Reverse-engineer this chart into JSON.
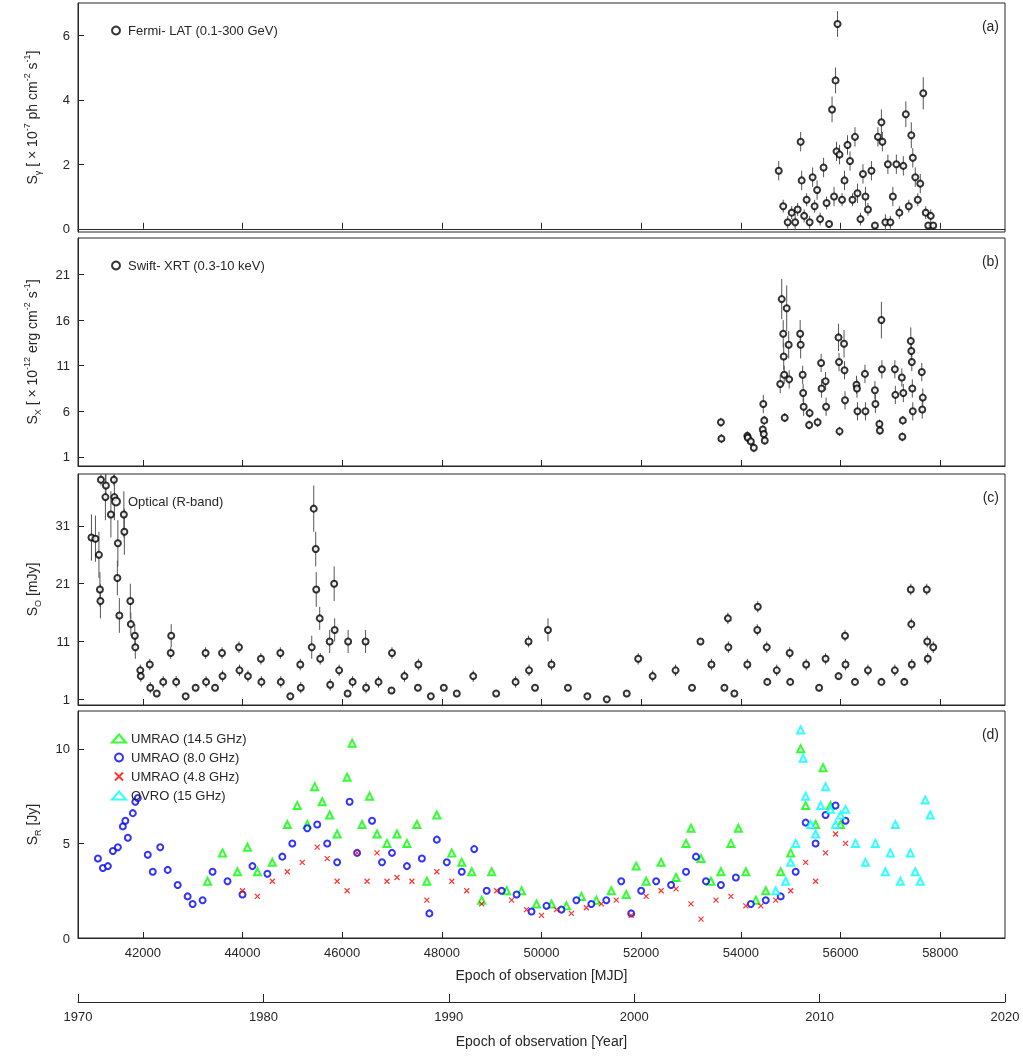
{
  "chart_data": [
    {
      "type": "scatter",
      "ylabel": "S$_{γ}$ [ × 10$^{-7}$ ph cm$^{-2}$ s$^{-1}$]",
      "xlim": [
        40700,
        59300
      ],
      "xticks": [
        42000,
        44000,
        46000,
        48000,
        50000,
        52000,
        54000,
        56000,
        58000
      ],
      "ylim": [
        -0.1,
        7
      ],
      "yticks": [
        0,
        2,
        4,
        6
      ],
      "tick_labels": "y",
      "marker": "circle",
      "legend": "top left",
      "annotations": [
        "(a)"
      ],
      "series": [
        {
          "name": "Fermi- LAT (0.1-300 GeV)",
          "color": "#000000",
          "x": [
            54760,
            54850,
            54940,
            55020,
            55090,
            55140,
            55200,
            55220,
            55270,
            55320,
            55380,
            55440,
            55480,
            55530,
            55590,
            55660,
            55720,
            55770,
            55830,
            55870,
            55900,
            55920,
            55940,
            55980,
            56030,
            56080,
            56140,
            56190,
            56240,
            56290,
            56340,
            56400,
            56450,
            56500,
            56550,
            56620,
            56690,
            56750,
            56820,
            56840,
            56900,
            56950,
            57000,
            57050,
            57120,
            57180,
            57260,
            57310,
            57370,
            57420,
            57450,
            57500,
            57550,
            57600,
            57660,
            57710,
            57760,
            57810,
            57860
          ],
          "values": [
            1.8,
            0.7,
            0.2,
            0.5,
            0.2,
            0.6,
            2.7,
            1.5,
            0.4,
            0.9,
            0.2,
            1.6,
            0.7,
            1.2,
            0.3,
            1.9,
            0.8,
            0.15,
            3.7,
            1.0,
            4.6,
            2.4,
            6.35,
            2.3,
            0.9,
            1.5,
            2.6,
            2.1,
            0.9,
            2.85,
            1.1,
            0.3,
            1.7,
            1.0,
            0.6,
            1.8,
            0.1,
            2.85,
            3.3,
            2.7,
            0.2,
            2.0,
            0.2,
            1.0,
            2.0,
            0.5,
            1.95,
            3.55,
            0.7,
            2.9,
            2.2,
            1.6,
            0.9,
            1.4,
            4.2,
            0.5,
            0.1,
            0.4,
            0.1
          ],
          "errors": [
            0.3,
            0.2,
            0.2,
            0.2,
            0.25,
            0.2,
            0.3,
            0.3,
            0.2,
            0.2,
            0.2,
            0.3,
            0.2,
            0.3,
            0.2,
            0.3,
            0.2,
            0.1,
            0.4,
            0.3,
            0.4,
            0.3,
            0.4,
            0.3,
            0.2,
            0.3,
            0.3,
            0.3,
            0.2,
            0.3,
            0.3,
            0.2,
            0.3,
            0.3,
            0.2,
            0.3,
            0.1,
            0.3,
            0.4,
            0.3,
            0.25,
            0.3,
            0.2,
            0.3,
            0.3,
            0.2,
            0.3,
            0.4,
            0.2,
            0.4,
            0.3,
            0.3,
            0.2,
            0.3,
            0.5,
            0.2,
            0.1,
            0.2,
            0.1
          ]
        }
      ]
    },
    {
      "type": "scatter",
      "ylabel": "S$_{X}$ [ × 10$^{-12}$ erg cm$^{-2}$ s$^{-1}$]",
      "xlim": [
        40700,
        59300
      ],
      "xticks": [
        42000,
        44000,
        46000,
        48000,
        50000,
        52000,
        54000,
        56000,
        58000
      ],
      "ylim": [
        0,
        25
      ],
      "yticks": [
        1,
        6,
        11,
        16,
        21
      ],
      "tick_labels": "y",
      "marker": "circle",
      "legend": "top left",
      "annotations": [
        "(b)"
      ],
      "series": [
        {
          "name": "Swift- XRT (0.3-10 keV)",
          "color": "#000000",
          "x": [
            53600,
            53610,
            54130,
            54140,
            54200,
            54260,
            54440,
            54450,
            54460,
            54470,
            54480,
            54790,
            54820,
            54850,
            54860,
            54870,
            54880,
            54920,
            54960,
            54970,
            55190,
            55200,
            55240,
            55250,
            55260,
            55370,
            55380,
            55540,
            55610,
            55620,
            55700,
            55710,
            55960,
            55970,
            55980,
            56070,
            56080,
            56090,
            56320,
            56330,
            56340,
            56490,
            56500,
            56690,
            56700,
            56780,
            56790,
            56820,
            56830,
            57090,
            57100,
            57230,
            57240,
            57250,
            57260,
            57410,
            57420,
            57430,
            57440,
            57450,
            57630,
            57640,
            57650
          ],
          "values": [
            4.8,
            3.0,
            3.3,
            3.1,
            2.7,
            2.0,
            4.0,
            6.8,
            3.5,
            5.0,
            2.8,
            9.0,
            18.3,
            14.5,
            12.0,
            10.0,
            5.3,
            17.3,
            13.3,
            9.5,
            14.5,
            13.3,
            10.0,
            8.0,
            6.5,
            4.5,
            5.8,
            4.8,
            11.3,
            8.5,
            9.3,
            6.5,
            14.1,
            11.4,
            3.8,
            13.4,
            10.5,
            7.2,
            8.9,
            8.5,
            6.0,
            10.1,
            6.0,
            8.3,
            6.8,
            4.6,
            3.9,
            16.0,
            10.6,
            10.6,
            7.8,
            9.7,
            3.2,
            5.0,
            8.0,
            13.7,
            12.6,
            11.4,
            8.5,
            6.0,
            10.3,
            6.2,
            7.5
          ],
          "errors": [
            0.5,
            0.5,
            0.5,
            0.5,
            0.5,
            0.5,
            0.5,
            1,
            0.5,
            0.5,
            0.5,
            1,
            2.2,
            1.5,
            1.5,
            1,
            0.5,
            2.5,
            1.5,
            1,
            1.5,
            1.5,
            1,
            1,
            1,
            0.5,
            0.5,
            0.5,
            1,
            1,
            1,
            1,
            1.5,
            1,
            0.5,
            1.5,
            1,
            1,
            1,
            1,
            1,
            1,
            1,
            1,
            1,
            0.5,
            0.5,
            2,
            1,
            1,
            1,
            1,
            0.5,
            0.5,
            1,
            1.5,
            1.5,
            1,
            1,
            1,
            1,
            1,
            1
          ]
        }
      ]
    },
    {
      "type": "scatter",
      "ylabel": "S$_{O}$ [mJy]",
      "xlim": [
        40700,
        59300
      ],
      "xticks": [
        42000,
        44000,
        46000,
        48000,
        50000,
        52000,
        54000,
        56000,
        58000
      ],
      "ylim": [
        0,
        40
      ],
      "yticks": [
        1,
        11,
        21,
        31
      ],
      "tick_labels": "y",
      "marker": "circle",
      "legend": "top left",
      "annotations": [
        "(c)"
      ],
      "series": [
        {
          "name": "Optical (R-band)",
          "color": "#000000",
          "x": [
            40970,
            41050,
            41120,
            41140,
            41150,
            41160,
            41250,
            41260,
            41360,
            41420,
            41430,
            41490,
            41500,
            41530,
            41620,
            41630,
            41750,
            41760,
            41840,
            41850,
            41950,
            41960,
            42140,
            42150,
            42280,
            42410,
            42560,
            42570,
            42670,
            42860,
            43060,
            43260,
            43270,
            43450,
            43590,
            43600,
            43930,
            43940,
            44110,
            44370,
            44380,
            44760,
            44770,
            44960,
            45160,
            45170,
            45390,
            45430,
            45470,
            45480,
            45550,
            45560,
            45750,
            45760,
            45840,
            45850,
            45940,
            46110,
            46120,
            46210,
            46470,
            46480,
            46730,
            46990,
            47000,
            47250,
            47520,
            47530,
            47780,
            48040,
            48300,
            48630,
            49090,
            49480,
            49740,
            49750,
            49870,
            50130,
            50200,
            50530,
            50920,
            51310,
            51710,
            51940,
            52230,
            52690,
            53020,
            53190,
            53410,
            53670,
            53740,
            53750,
            53870,
            54130,
            54330,
            54340,
            54520,
            54530,
            54720,
            54980,
            54990,
            55310,
            55570,
            55700,
            55960,
            56090,
            56100,
            56290,
            56550,
            56820,
            57090,
            57280,
            57410,
            57420,
            57430,
            57730,
            57740,
            57750,
            57860
          ],
          "values": [
            29,
            28.8,
            26,
            20,
            18,
            39,
            36,
            38,
            33,
            39,
            36,
            22,
            28,
            15.5,
            33,
            30,
            18,
            14,
            12,
            10,
            6,
            5,
            7,
            3,
            2,
            4,
            9,
            12,
            4,
            1.5,
            3,
            9,
            4,
            3,
            9,
            5,
            10,
            6,
            5,
            8,
            4,
            9,
            4,
            1.5,
            7,
            3,
            10,
            34,
            27,
            20,
            15,
            8,
            11,
            3.5,
            21,
            13,
            6,
            2,
            11,
            4,
            11,
            3,
            4,
            2.5,
            9,
            5,
            3,
            7,
            1.5,
            3,
            2,
            5,
            2,
            4,
            11,
            6,
            3,
            13,
            7,
            3,
            1.5,
            1,
            2,
            8,
            5,
            6,
            3,
            11,
            7,
            3,
            15,
            10,
            2,
            7,
            13,
            17,
            10,
            4,
            6,
            9,
            4,
            7,
            3,
            8,
            5,
            12,
            7,
            4,
            6,
            4,
            6,
            4,
            20,
            14,
            7,
            20,
            11,
            8,
            10
          ],
          "errors": [
            4,
            4,
            4,
            3,
            3,
            1,
            4,
            2,
            4,
            1,
            4,
            3,
            4,
            3,
            4,
            4,
            3,
            2,
            2,
            2,
            1,
            1,
            1,
            1,
            0.5,
            1,
            1,
            2,
            1,
            0.5,
            0.5,
            1,
            1,
            0.5,
            1,
            1,
            1,
            1,
            1,
            1,
            1,
            1,
            1,
            0.5,
            1,
            1,
            2,
            4,
            3,
            3,
            2,
            1,
            2,
            1,
            3,
            2,
            1,
            0.5,
            2,
            1,
            2,
            1,
            1,
            0.5,
            1,
            1,
            0.5,
            1,
            0.5,
            0.5,
            0.5,
            1,
            0.5,
            1,
            1,
            1,
            0.5,
            2,
            1,
            0.5,
            0.5,
            0.5,
            0.5,
            1,
            1,
            1,
            0.5,
            0.5,
            1,
            0.5,
            1,
            1,
            0.5,
            1,
            1,
            1,
            1,
            0.5,
            1,
            1,
            0.5,
            1,
            0.5,
            1,
            0.5,
            1,
            1,
            0.5,
            1,
            0.5,
            1,
            0.5,
            1,
            1,
            1,
            1,
            1,
            1,
            1
          ]
        }
      ]
    },
    {
      "type": "scatter",
      "ylabel": "S$_{R}$ [Jy]",
      "xlabel": "Epoch of observation [MJD]",
      "x2label": "Epoch of observation [Year]",
      "xlim": [
        40700,
        59300
      ],
      "xticks": [
        42000,
        44000,
        46000,
        48000,
        50000,
        52000,
        54000,
        56000,
        58000
      ],
      "x2lim": [
        1970,
        2020
      ],
      "x2ticks": [
        1970,
        1980,
        1990,
        2000,
        2010,
        2020
      ],
      "ylim": [
        0,
        12
      ],
      "yticks": [
        0,
        5,
        10
      ],
      "legend": "top left",
      "annotations": [
        "(d)"
      ],
      "series": [
        {
          "name": "UMRAO (14.5 GHz)",
          "color": "#00ff00",
          "marker": "triangle",
          "x": [
            43300,
            43600,
            43900,
            44100,
            44300,
            44600,
            44900,
            45100,
            45300,
            45450,
            45600,
            45750,
            45900,
            46100,
            46200,
            46400,
            46550,
            46700,
            46900,
            47100,
            47300,
            47500,
            47700,
            47900,
            48200,
            48400,
            48600,
            48800,
            49000,
            49300,
            49600,
            49900,
            50200,
            50500,
            50800,
            51100,
            51400,
            51700,
            51900,
            52100,
            52400,
            52700,
            52900,
            53000,
            53200,
            53400,
            53600,
            53800,
            53950,
            54100,
            54300,
            54500,
            54800,
            55000,
            55200,
            55300,
            55500,
            55650,
            55800,
            56000
          ],
          "values": [
            3.0,
            4.5,
            3.5,
            4.8,
            3.5,
            4.0,
            6.0,
            7.0,
            6.0,
            8.0,
            7.2,
            6.5,
            5.5,
            8.5,
            10.3,
            6.0,
            7.5,
            5.5,
            5.0,
            5.5,
            5.0,
            6.0,
            3.0,
            6.5,
            4.5,
            4.0,
            3.5,
            2.0,
            3.5,
            2.5,
            2.5,
            1.8,
            1.8,
            1.7,
            2.2,
            2.0,
            2.5,
            2.3,
            3.8,
            3.0,
            4.0,
            3.2,
            5.0,
            5.8,
            4.2,
            3.0,
            3.5,
            5.0,
            5.8,
            3.5,
            2.0,
            2.5,
            3.5,
            4.5,
            10.0,
            7.0,
            6.0,
            9.0,
            7.0,
            6.0
          ]
        },
        {
          "name": "UMRAO (8.0 GHz)",
          "color": "#0000ff",
          "marker": "circle",
          "x": [
            41100,
            41200,
            41300,
            41400,
            41500,
            41600,
            41650,
            41700,
            41800,
            41850,
            41900,
            42100,
            42200,
            42350,
            42500,
            42700,
            42900,
            43000,
            43200,
            43400,
            43700,
            44000,
            44200,
            44500,
            44800,
            45000,
            45300,
            45500,
            45700,
            45900,
            46150,
            46300,
            46600,
            46800,
            47000,
            47300,
            47600,
            47750,
            47900,
            48100,
            48400,
            48650,
            48900,
            49200,
            49500,
            49800,
            50100,
            50400,
            50700,
            51000,
            51300,
            51600,
            51800,
            52000,
            52300,
            52600,
            52900,
            53100,
            53300,
            53600,
            53900,
            54200,
            54500,
            54800,
            55100,
            55300,
            55500,
            55700,
            55900,
            56100
          ],
          "values": [
            4.2,
            3.7,
            3.8,
            4.6,
            4.8,
            5.9,
            6.2,
            5.3,
            6.6,
            7.2,
            7.4,
            4.4,
            3.5,
            4.8,
            3.6,
            2.8,
            2.2,
            1.8,
            2.0,
            3.5,
            3.0,
            2.3,
            3.8,
            3.4,
            4.3,
            5.0,
            5.8,
            6.0,
            5.0,
            4.0,
            7.2,
            4.5,
            6.2,
            4.0,
            4.5,
            3.8,
            4.2,
            1.3,
            5.2,
            4.0,
            3.5,
            4.7,
            2.5,
            2.5,
            2.3,
            1.4,
            1.7,
            1.5,
            2.0,
            1.8,
            2.0,
            3.0,
            1.3,
            2.5,
            3.0,
            2.8,
            3.5,
            4.3,
            3.0,
            2.8,
            3.2,
            1.8,
            2.0,
            2.2,
            3.5,
            6.1,
            5.0,
            6.5,
            7.0,
            6.2
          ]
        },
        {
          "name": "UMRAO (4.8 GHz)",
          "color": "#ff0000",
          "marker": "cross",
          "x": [
            44000,
            44300,
            44600,
            44900,
            45200,
            45500,
            45700,
            45900,
            46100,
            46300,
            46500,
            46700,
            46900,
            47100,
            47400,
            47700,
            47900,
            48200,
            48500,
            48800,
            49100,
            49400,
            49700,
            50000,
            50300,
            50600,
            50900,
            51200,
            51500,
            51800,
            52100,
            52400,
            52700,
            53000,
            53200,
            53500,
            53800,
            54100,
            54400,
            54700,
            55000,
            55300,
            55500,
            55700,
            55900,
            56100
          ],
          "values": [
            2.5,
            2.2,
            3.0,
            3.5,
            4.0,
            4.8,
            4.2,
            3.0,
            2.5,
            4.5,
            3.0,
            4.5,
            3.0,
            3.2,
            3.0,
            2.0,
            3.5,
            3.0,
            2.5,
            1.8,
            2.5,
            2.0,
            1.5,
            1.2,
            1.5,
            1.3,
            1.6,
            1.8,
            2.0,
            1.2,
            2.2,
            2.5,
            2.6,
            1.8,
            1.0,
            2.0,
            2.2,
            1.7,
            1.7,
            2.0,
            2.5,
            4.0,
            3.0,
            4.5,
            5.5,
            5.0
          ]
        },
        {
          "name": "OVRO (15 GHz)",
          "color": "#00ffff",
          "marker": "triangle",
          "x": [
            54700,
            54900,
            55000,
            55100,
            55200,
            55250,
            55300,
            55400,
            55500,
            55600,
            55700,
            55800,
            55900,
            56000,
            56100,
            56300,
            56500,
            56700,
            56900,
            57000,
            57100,
            57200,
            57400,
            57500,
            57600,
            57700,
            57800
          ],
          "values": [
            2.5,
            3.0,
            4.0,
            5.0,
            11.0,
            9.5,
            7.5,
            6.0,
            5.5,
            7.0,
            8.0,
            6.8,
            6.0,
            6.5,
            6.8,
            5.0,
            4.0,
            5.0,
            3.5,
            4.5,
            6.0,
            3.0,
            4.5,
            3.5,
            3.0,
            7.3,
            6.5
          ]
        }
      ]
    }
  ]
}
